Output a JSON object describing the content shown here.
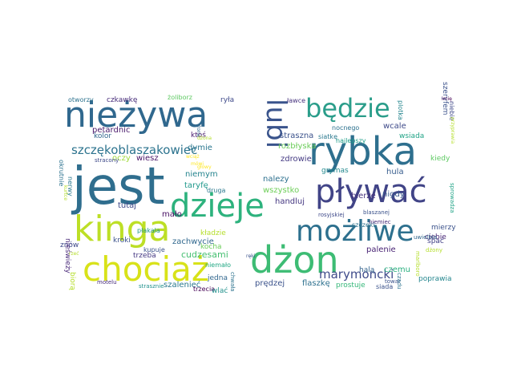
{
  "word_cloud": {
    "words": [
      {
        "text": "jest",
        "color": "#2f6e8e"
      },
      {
        "text": "rybka",
        "color": "#2e6f8e"
      },
      {
        "text": "nieżywa",
        "color": "#30688e"
      },
      {
        "text": "kinga",
        "color": "#bddf26"
      },
      {
        "text": "dżon",
        "color": "#3dbc74"
      },
      {
        "text": "chociaż",
        "color": "#d8e219"
      },
      {
        "text": "pływać",
        "color": "#414487"
      },
      {
        "text": "dzieje",
        "color": "#2db27d"
      },
      {
        "text": "możliwe",
        "color": "#2d708e"
      },
      {
        "text": "będzie",
        "color": "#2a9d8a"
      },
      {
        "text": "lubi",
        "color": "#3a548c"
      },
      {
        "text": "szczękoblaszakowiec",
        "color": "#2c738e"
      },
      {
        "text": "marymoncki",
        "color": "#3f4b8a"
      },
      {
        "text": "cudzesami",
        "color": "#44bf70"
      },
      {
        "text": "zachwycie",
        "color": "#31688e"
      },
      {
        "text": "rozbłyska",
        "color": "#6ccd5a"
      },
      {
        "text": "handluj",
        "color": "#453781"
      },
      {
        "text": "prędzej",
        "color": "#3b528b"
      },
      {
        "text": "flaszkę",
        "color": "#2d708e"
      },
      {
        "text": "palenie",
        "color": "#482374"
      },
      {
        "text": "czemu",
        "color": "#29af7f"
      },
      {
        "text": "halą",
        "color": "#33638d"
      },
      {
        "text": "zdrowie",
        "color": "#443a83"
      },
      {
        "text": "wszystko",
        "color": "#6ece58"
      },
      {
        "text": "straszna",
        "color": "#3b528b"
      },
      {
        "text": "petardnic",
        "color": "#48186a"
      },
      {
        "text": "nigdy",
        "color": "#38588c"
      },
      {
        "text": "bierze",
        "color": "#46327e"
      },
      {
        "text": "wcale",
        "color": "#3e4a89"
      },
      {
        "text": "ktoś",
        "color": "#481b6d"
      },
      {
        "text": "mało",
        "color": "#471063"
      },
      {
        "text": "tutaj",
        "color": "#3e4989"
      },
      {
        "text": "taryfę",
        "color": "#1f988b"
      },
      {
        "text": "dymie",
        "color": "#2a768e"
      },
      {
        "text": "wiesz",
        "color": "#481467"
      },
      {
        "text": "niemym",
        "color": "#25848e"
      },
      {
        "text": "nalezy",
        "color": "#2d708e"
      },
      {
        "text": "hula",
        "color": "#365c8d"
      },
      {
        "text": "plotka",
        "color": "#25858e"
      },
      {
        "text": "ciebie",
        "color": "#482475"
      },
      {
        "text": "mierzy",
        "color": "#3b528b"
      },
      {
        "text": "spać",
        "color": "#424086"
      },
      {
        "text": "szalenieć",
        "color": "#2a788e"
      },
      {
        "text": "poprawia",
        "color": "#24868e"
      },
      {
        "text": "prostuje",
        "color": "#35b779"
      },
      {
        "text": "trzeba",
        "color": "#453882"
      },
      {
        "text": "oczy",
        "color": "#9fda3a"
      },
      {
        "text": "kolor",
        "color": "#31678e"
      },
      {
        "text": "ryła",
        "color": "#3e4989"
      },
      {
        "text": "ławce",
        "color": "#46327e"
      },
      {
        "text": "nocnego",
        "color": "#2c718e"
      },
      {
        "text": "siatkę",
        "color": "#2a788e"
      },
      {
        "text": "grymas",
        "color": "#23898e"
      },
      {
        "text": "wsiada",
        "color": "#20a386"
      },
      {
        "text": "szeryfem",
        "color": "#3b528b"
      },
      {
        "text": "niebie",
        "color": "#3e4989"
      },
      {
        "text": "najlepszy",
        "color": "#1f9e89"
      },
      {
        "text": "kiedy",
        "color": "#5ec962"
      },
      {
        "text": "sprowadza",
        "color": "#20a386"
      },
      {
        "text": "czkawkę",
        "color": "#472c7a"
      },
      {
        "text": "otworzy",
        "color": "#2c728e"
      },
      {
        "text": "żoliborz",
        "color": "#5ec962"
      },
      {
        "text": "imię",
        "color": "#440154"
      },
      {
        "text": "okrutnie",
        "color": "#2c728e"
      },
      {
        "text": "nerwy",
        "color": "#2a788e"
      },
      {
        "text": "płakała",
        "color": "#1f988b"
      },
      {
        "text": "kroki",
        "color": "#3b528b"
      },
      {
        "text": "kupuje",
        "color": "#3b528b"
      },
      {
        "text": "niemało",
        "color": "#22a884"
      },
      {
        "text": "kocha",
        "color": "#6ccd5a"
      },
      {
        "text": "kładzie",
        "color": "#b5de2b"
      },
      {
        "text": "jedna",
        "color": "#31678e"
      },
      {
        "text": "druga",
        "color": "#2a788e"
      },
      {
        "text": "trzecia",
        "color": "#440154"
      },
      {
        "text": "szczęki",
        "color": "#2c728e"
      },
      {
        "text": "rosyjskiej",
        "color": "#3e4989"
      },
      {
        "text": "niemiec",
        "color": "#472c7a"
      },
      {
        "text": "blaszanej",
        "color": "#3b528b"
      },
      {
        "text": "uwielbia",
        "color": "#31678e"
      },
      {
        "text": "dżony",
        "color": "#b5de2b"
      },
      {
        "text": "towar",
        "color": "#3b528b"
      },
      {
        "text": "siada",
        "color": "#3b528b"
      },
      {
        "text": "marlboro",
        "color": "#b5de2b"
      },
      {
        "text": "czadu",
        "color": "#2c728e"
      },
      {
        "text": "znów",
        "color": "#3e4989"
      },
      {
        "text": "nieświeży",
        "color": "#482878"
      },
      {
        "text": "biorą",
        "color": "#b5de2b"
      },
      {
        "text": "motelu",
        "color": "#472c7a"
      },
      {
        "text": "stracony",
        "color": "#3e4989"
      },
      {
        "text": "strasznie",
        "color": "#21918c"
      },
      {
        "text": "wlać",
        "color": "#21918c"
      },
      {
        "text": "chwała",
        "color": "#2c728e"
      },
      {
        "text": "ręki",
        "color": "#3b528b"
      },
      {
        "text": "żona",
        "color": "#31678e"
      },
      {
        "text": "dżona",
        "color": "#b5de2b"
      },
      {
        "text": "wciąż",
        "color": "#fde725"
      },
      {
        "text": "mówi",
        "color": "#fde725"
      },
      {
        "text": "głowy",
        "color": "#fde725"
      },
      {
        "text": "kurtce",
        "color": "#b5de2b"
      },
      {
        "text": "rzeć",
        "color": "#b5de2b"
      },
      {
        "text": "przyprawia",
        "color": "#b5de2b"
      }
    ]
  }
}
